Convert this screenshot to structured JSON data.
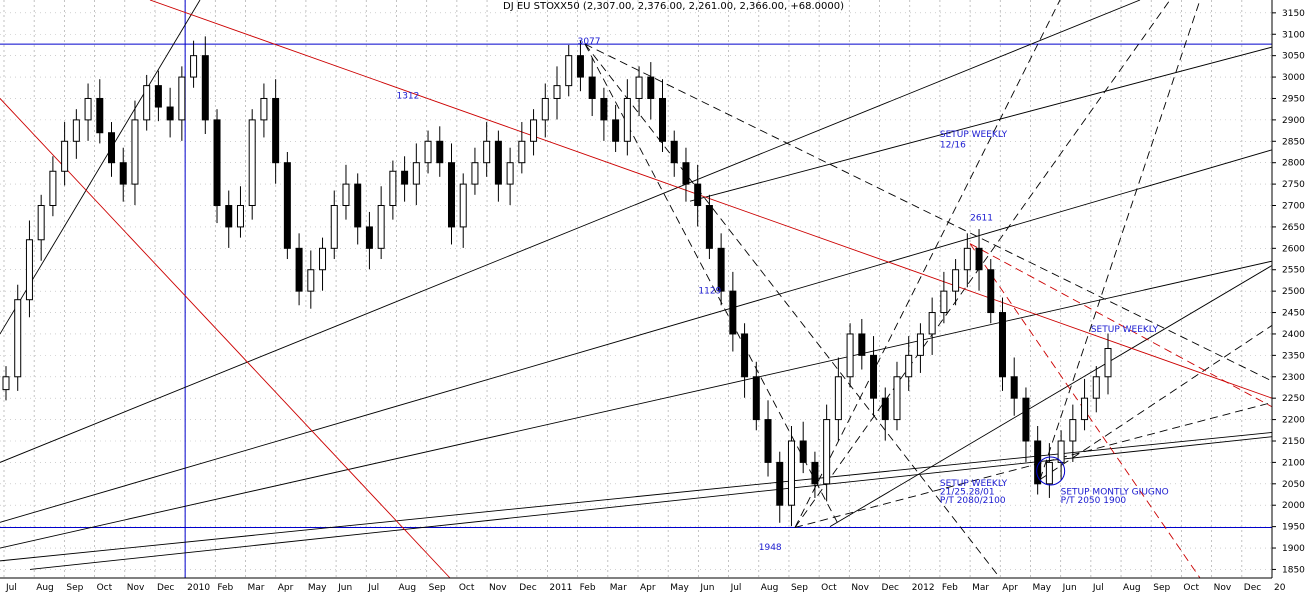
{
  "header": {
    "title": "DJ EU STOXX50 (2,307.00, 2,376.00, 2,261.00, 2,366.00, +68.0000)"
  },
  "colors": {
    "background": "#ffffff",
    "grid": "#b4b4b4",
    "candle": "#000000",
    "black_trendline": "#000000",
    "red_trendline": "#cc0000",
    "horizontal_level": "#0000cc",
    "annotation": "#1a1ad0"
  },
  "chart_data": {
    "type": "candlestick",
    "title": "DJ EU STOXX50 (2,307.00, 2,376.00, 2,261.00, 2,366.00, +68.0000)",
    "period": "weekly",
    "ylim": [
      1830,
      3180
    ],
    "y_ticks": [
      1850,
      1900,
      1950,
      2000,
      2050,
      2100,
      2150,
      2200,
      2250,
      2300,
      2350,
      2400,
      2450,
      2500,
      2550,
      2600,
      2650,
      2700,
      2750,
      2800,
      2850,
      2900,
      2950,
      3000,
      3050,
      3100,
      3150
    ],
    "x_tick_labels": [
      "Jul",
      "Aug",
      "Sep",
      "Oct",
      "Nov",
      "Dec",
      "2010",
      "Feb",
      "Mar",
      "Apr",
      "May",
      "Jun",
      "Jul",
      "Aug",
      "Sep",
      "Oct",
      "Nov",
      "Dec",
      "2011",
      "Feb",
      "Mar",
      "Apr",
      "May",
      "Jun",
      "Jul",
      "Aug",
      "Sep",
      "Oct",
      "Nov",
      "Dec",
      "2012",
      "Feb",
      "Mar",
      "Apr",
      "May",
      "Jun",
      "Jul",
      "Aug",
      "Sep",
      "Oct",
      "Nov",
      "Dec",
      "20"
    ],
    "grid": true,
    "horizontal_levels": [
      3077,
      1948
    ],
    "closes_approx": [
      2300,
      2480,
      2620,
      2700,
      2780,
      2850,
      2900,
      2950,
      2870,
      2800,
      2750,
      2900,
      2980,
      2930,
      2900,
      3000,
      3050,
      2900,
      2700,
      2650,
      2700,
      2900,
      2950,
      2800,
      2600,
      2500,
      2550,
      2600,
      2700,
      2750,
      2650,
      2600,
      2700,
      2780,
      2750,
      2800,
      2850,
      2800,
      2650,
      2750,
      2800,
      2850,
      2750,
      2800,
      2850,
      2900,
      2950,
      2980,
      3050,
      3000,
      2950,
      2900,
      2850,
      2950,
      3000,
      2950,
      2850,
      2800,
      2750,
      2700,
      2600,
      2500,
      2400,
      2300,
      2200,
      2100,
      2000,
      2150,
      2100,
      2050,
      2200,
      2300,
      2400,
      2350,
      2250,
      2200,
      2300,
      2350,
      2400,
      2450,
      2500,
      2550,
      2600,
      2550,
      2450,
      2300,
      2250,
      2150,
      2050,
      2100,
      2150,
      2200,
      2250,
      2300,
      2366
    ],
    "annotations": [
      {
        "text": "3077",
        "x": "Feb 2011",
        "y": 3077
      },
      {
        "text": "1312",
        "x": "Aug 2010",
        "y": 2950
      },
      {
        "text": "1129",
        "x": "Jun 2011",
        "y": 2495
      },
      {
        "text": "1948",
        "x": "Aug 2011",
        "y": 1895
      },
      {
        "text": "2611",
        "x": "Mar 2012",
        "y": 2665
      },
      {
        "text": "SETUP WEEKLY",
        "x": "Feb 2012",
        "y": 2860
      },
      {
        "text": "12/16",
        "x": "Feb 2012",
        "y": 2835
      },
      {
        "text": "SETUP WEEKLY",
        "x": "Jul 2012",
        "y": 2405
      },
      {
        "text": "SETUP WEEKLY",
        "x": "Feb 2012",
        "y": 2045
      },
      {
        "text": "21/25.28/01",
        "x": "Feb 2012",
        "y": 2025
      },
      {
        "text": "P/T 2080/2100",
        "x": "Feb 2012",
        "y": 2005
      },
      {
        "text": "SETUP MONTLY GIUGNO",
        "x": "Jun 2012",
        "y": 2025
      },
      {
        "text": "P/T 2050 1900",
        "x": "Jun 2012",
        "y": 2005
      }
    ]
  }
}
